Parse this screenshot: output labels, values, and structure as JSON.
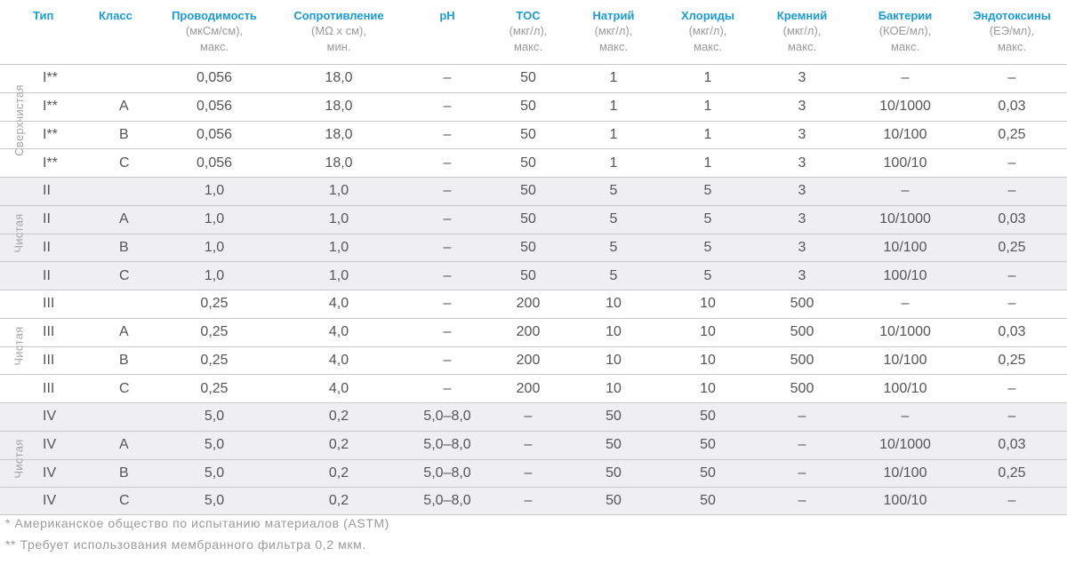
{
  "columns": [
    {
      "key": "type",
      "name": "Тип",
      "sub1": "",
      "sub2": ""
    },
    {
      "key": "class",
      "name": "Класс",
      "sub1": "",
      "sub2": ""
    },
    {
      "key": "cond",
      "name": "Проводимость",
      "sub1": "(мкСм/см),",
      "sub2": "макс."
    },
    {
      "key": "resist",
      "name": "Сопротивление",
      "sub1": "(MΩ x см),",
      "sub2": "мин."
    },
    {
      "key": "ph",
      "name": "pH",
      "sub1": "",
      "sub2": ""
    },
    {
      "key": "toc",
      "name": "TOC",
      "sub1": "(мкг/л),",
      "sub2": "макс."
    },
    {
      "key": "sodium",
      "name": "Натрий",
      "sub1": "(мкг/л),",
      "sub2": "макс."
    },
    {
      "key": "chloride",
      "name": "Хлориды",
      "sub1": "(мкг/л),",
      "sub2": "макс."
    },
    {
      "key": "silicon",
      "name": "Кремний",
      "sub1": "(мкг/л),",
      "sub2": "макс."
    },
    {
      "key": "bacteria",
      "name": "Бактерии",
      "sub1": "(КОЕ/мл),",
      "sub2": "макс."
    },
    {
      "key": "endotox",
      "name": "Эндотоксины",
      "sub1": "(ЕЭ/мл),",
      "sub2": "макс."
    }
  ],
  "groups": [
    {
      "label": "Сверхчистая",
      "rows": [
        [
          "I**",
          "",
          "0,056",
          "18,0",
          "–",
          "50",
          "1",
          "1",
          "3",
          "–",
          "–"
        ],
        [
          "I**",
          "A",
          "0,056",
          "18,0",
          "–",
          "50",
          "1",
          "1",
          "3",
          "10/1000",
          "0,03"
        ],
        [
          "I**",
          "B",
          "0,056",
          "18,0",
          "–",
          "50",
          "1",
          "1",
          "3",
          "10/100",
          "0,25"
        ],
        [
          "I**",
          "C",
          "0,056",
          "18,0",
          "–",
          "50",
          "1",
          "1",
          "3",
          "100/10",
          "–"
        ]
      ]
    },
    {
      "label": "Чистая",
      "rows": [
        [
          "II",
          "",
          "1,0",
          "1,0",
          "–",
          "50",
          "5",
          "5",
          "3",
          "–",
          "–"
        ],
        [
          "II",
          "A",
          "1,0",
          "1,0",
          "–",
          "50",
          "5",
          "5",
          "3",
          "10/1000",
          "0,03"
        ],
        [
          "II",
          "B",
          "1,0",
          "1,0",
          "–",
          "50",
          "5",
          "5",
          "3",
          "10/100",
          "0,25"
        ],
        [
          "II",
          "C",
          "1,0",
          "1,0",
          "–",
          "50",
          "5",
          "5",
          "3",
          "100/10",
          "–"
        ]
      ]
    },
    {
      "label": "Чистая",
      "rows": [
        [
          "III",
          "",
          "0,25",
          "4,0",
          "–",
          "200",
          "10",
          "10",
          "500",
          "–",
          "–"
        ],
        [
          "III",
          "A",
          "0,25",
          "4,0",
          "–",
          "200",
          "10",
          "10",
          "500",
          "10/1000",
          "0,03"
        ],
        [
          "III",
          "B",
          "0,25",
          "4,0",
          "–",
          "200",
          "10",
          "10",
          "500",
          "10/100",
          "0,25"
        ],
        [
          "III",
          "C",
          "0,25",
          "4,0",
          "–",
          "200",
          "10",
          "10",
          "500",
          "100/10",
          "–"
        ]
      ]
    },
    {
      "label": "Чистая",
      "rows": [
        [
          "IV",
          "",
          "5,0",
          "0,2",
          "5,0–8,0",
          "–",
          "50",
          "50",
          "–",
          "–",
          "–"
        ],
        [
          "IV",
          "A",
          "5,0",
          "0,2",
          "5,0–8,0",
          "–",
          "50",
          "50",
          "–",
          "10/1000",
          "0,03"
        ],
        [
          "IV",
          "B",
          "5,0",
          "0,2",
          "5,0–8,0",
          "–",
          "50",
          "50",
          "–",
          "10/100",
          "0,25"
        ],
        [
          "IV",
          "C",
          "5,0",
          "0,2",
          "5,0–8,0",
          "–",
          "50",
          "50",
          "–",
          "100/10",
          "–"
        ]
      ]
    }
  ],
  "footnotes": [
    "* Американское общество по испытанию материалов (ASTM)",
    "** Требует использования мембранного фильтра 0,2 мкм."
  ]
}
